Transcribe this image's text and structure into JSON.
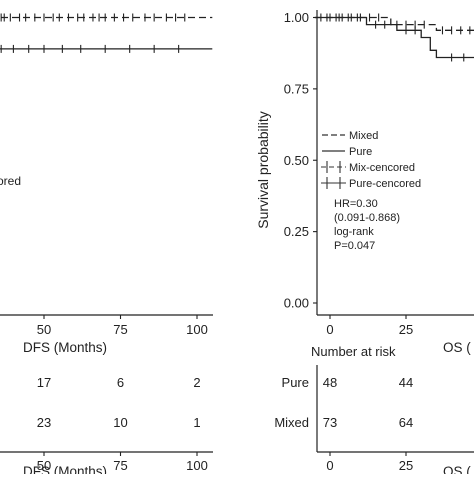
{
  "chart_data": [
    {
      "type": "line",
      "panel": "left",
      "xlabel": "DFS (Months)",
      "ylabel": "",
      "xlim": [
        0,
        105
      ],
      "ylim": [
        0,
        1.04
      ],
      "x_ticks": [
        50,
        75,
        100
      ],
      "series": [
        {
          "name": "Mixed",
          "style": "dashed",
          "points": [
            [
              0,
              1.0
            ],
            [
              105,
              1.0
            ]
          ],
          "censors": [
            2,
            4,
            6,
            9,
            11,
            13,
            14,
            16,
            18,
            20,
            22,
            24,
            27,
            29,
            31,
            34,
            36,
            37,
            39,
            42,
            44,
            47,
            50,
            53,
            55,
            58,
            61,
            63,
            66,
            68,
            70,
            73,
            76,
            79,
            83,
            86,
            90,
            93,
            96
          ]
        },
        {
          "name": "Pure",
          "style": "solid",
          "points": [
            [
              0,
              0.89
            ],
            [
              105,
              0.89
            ]
          ],
          "censors": [
            1,
            3,
            5,
            7,
            10,
            12,
            15,
            18,
            21,
            24,
            28,
            32,
            36,
            40,
            45,
            50,
            56,
            62,
            70,
            78,
            86,
            94
          ]
        }
      ],
      "legend": {
        "visible_fragment": "ored"
      },
      "risk_table": {
        "x": [
          50,
          75,
          100
        ],
        "rows": [
          {
            "values": [
              17,
              6,
              2
            ]
          },
          {
            "values": [
              23,
              10,
              1
            ]
          }
        ]
      },
      "bottom_xlabel": "DFS (Months)"
    },
    {
      "type": "line",
      "panel": "right",
      "xlabel": "OS (",
      "ylabel": "Survival probability",
      "xlim": [
        -5,
        50
      ],
      "ylim": [
        0,
        1.04
      ],
      "y_ticks": [
        "0.00",
        "0.25",
        "0.50",
        "0.75",
        "1.00"
      ],
      "y_values": [
        0,
        0.25,
        0.5,
        0.75,
        1.0
      ],
      "x_ticks": [
        0,
        25
      ],
      "series": [
        {
          "name": "Mixed",
          "style": "dashed",
          "points": [
            [
              -5,
              1.0
            ],
            [
              20,
              1.0
            ],
            [
              20,
              0.975
            ],
            [
              35,
              0.975
            ],
            [
              35,
              0.955
            ],
            [
              50,
              0.955
            ]
          ],
          "censors": [
            -3,
            -1,
            2,
            4,
            7,
            10,
            13,
            16,
            22,
            25,
            28,
            31,
            37,
            40,
            43,
            46
          ]
        },
        {
          "name": "Pure",
          "style": "solid",
          "points": [
            [
              -5,
              1.0
            ],
            [
              12,
              1.0
            ],
            [
              12,
              0.975
            ],
            [
              22,
              0.975
            ],
            [
              22,
              0.955
            ],
            [
              30,
              0.955
            ],
            [
              30,
              0.93
            ],
            [
              33,
              0.93
            ],
            [
              33,
              0.885
            ],
            [
              35,
              0.885
            ],
            [
              35,
              0.86
            ],
            [
              50,
              0.86
            ]
          ],
          "censors": [
            -4,
            0,
            3,
            6,
            9,
            15,
            18,
            25,
            28,
            40,
            44,
            48
          ]
        }
      ],
      "legend": {
        "placement": "center-left",
        "entries": [
          {
            "label": "Mixed",
            "symbol": "dashed"
          },
          {
            "label": "Pure",
            "symbol": "solid"
          },
          {
            "label": "Mix-cencored",
            "symbol": "cross"
          },
          {
            "label": "Pure-cencored",
            "symbol": "cross"
          }
        ]
      },
      "stats": [
        "HR=0.30",
        "(0.091-0.868)",
        "log-rank",
        "P=0.047"
      ],
      "risk_table": {
        "title": "Number at risk",
        "x": [
          0,
          25
        ],
        "rows": [
          {
            "name": "Pure",
            "values": [
              48,
              44
            ]
          },
          {
            "name": "Mixed",
            "values": [
              73,
              64
            ]
          }
        ]
      },
      "bottom_xlabel": "OS ("
    }
  ]
}
